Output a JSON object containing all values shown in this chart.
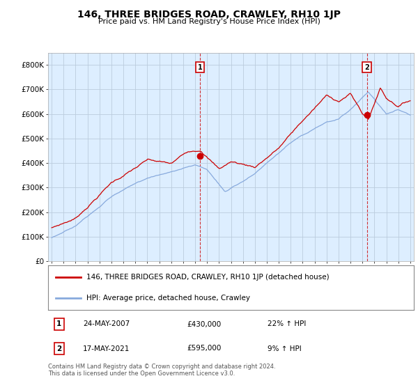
{
  "title": "146, THREE BRIDGES ROAD, CRAWLEY, RH10 1JP",
  "subtitle": "Price paid vs. HM Land Registry's House Price Index (HPI)",
  "ylabel_ticks": [
    "£0",
    "£100K",
    "£200K",
    "£300K",
    "£400K",
    "£500K",
    "£600K",
    "£700K",
    "£800K"
  ],
  "ytick_values": [
    0,
    100000,
    200000,
    300000,
    400000,
    500000,
    600000,
    700000,
    800000
  ],
  "ylim": [
    0,
    850000
  ],
  "xlim_start": 1994.7,
  "xlim_end": 2025.3,
  "sale1_year": 2007.4,
  "sale1_price": 430000,
  "sale2_year": 2021.38,
  "sale2_price": 595000,
  "legend_line1": "146, THREE BRIDGES ROAD, CRAWLEY, RH10 1JP (detached house)",
  "legend_line2": "HPI: Average price, detached house, Crawley",
  "footnote": "Contains HM Land Registry data © Crown copyright and database right 2024.\nThis data is licensed under the Open Government Licence v3.0.",
  "line_color_red": "#cc0000",
  "line_color_blue": "#88aadd",
  "background_color": "#ddeeff",
  "plot_bg": "#ffffff",
  "grid_color": "#bbccdd"
}
